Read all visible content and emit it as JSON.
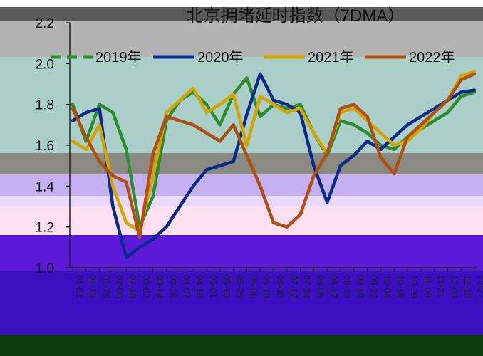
{
  "chart_data": {
    "type": "line",
    "title": "北京拥堵延时指数（7DMA）",
    "xlabel": "",
    "ylabel": "",
    "ylim": [
      1.0,
      2.2
    ],
    "yticks": [
      "1.0",
      "1.2",
      "1.4",
      "1.6",
      "1.8",
      "2.0",
      "2.2"
    ],
    "legend_position": "top",
    "grid": false,
    "x": [
      "01-01",
      "01-13",
      "01-25",
      "02-06",
      "02-18",
      "03-02",
      "03-14",
      "03-26",
      "04-07",
      "04-19",
      "05-01",
      "05-13",
      "05-25",
      "06-06",
      "06-18",
      "06-30",
      "07-12",
      "07-24",
      "08-05",
      "08-17",
      "08-29",
      "09-10",
      "09-22",
      "10-04",
      "10-16",
      "10-28",
      "11-09",
      "11-21",
      "12-03",
      "12-15",
      "12-27"
    ],
    "xtick_labels": [
      "01-01",
      "01-13",
      "01-25",
      "02-06",
      "02-18",
      "03-02",
      "03-14",
      "03-26",
      "04-07",
      "04-19",
      "05-01",
      "05-13",
      "05-25",
      "06-06",
      "06-18",
      "06-30",
      "07-12",
      "07-24",
      "08-05",
      "08-17",
      "08-29",
      "09-10",
      "09-22",
      "10-04",
      "10-16",
      "10-28",
      "11-09",
      "11-21",
      "12-03",
      "12-15",
      "12-27"
    ],
    "series": [
      {
        "name": "2019年",
        "color": "#2e8b2e",
        "dash": "dashed-in-legend",
        "values": [
          1.8,
          1.62,
          1.8,
          1.76,
          1.58,
          1.2,
          1.35,
          1.72,
          1.82,
          1.86,
          1.8,
          1.7,
          1.85,
          1.93,
          1.74,
          1.8,
          1.78,
          1.8,
          1.66,
          1.55,
          1.72,
          1.7,
          1.66,
          1.6,
          1.58,
          1.64,
          1.68,
          1.72,
          1.76,
          1.84,
          1.86
        ]
      },
      {
        "name": "2020年",
        "color": "#0a2a8c",
        "values": [
          1.72,
          1.76,
          1.78,
          1.3,
          1.05,
          1.1,
          1.14,
          1.2,
          1.3,
          1.4,
          1.48,
          1.5,
          1.52,
          1.75,
          1.95,
          1.82,
          1.8,
          1.76,
          1.5,
          1.32,
          1.5,
          1.55,
          1.62,
          1.58,
          1.64,
          1.7,
          1.74,
          1.78,
          1.82,
          1.86,
          1.87
        ]
      },
      {
        "name": "2021年",
        "color": "#d4a500",
        "values": [
          1.62,
          1.58,
          1.7,
          1.4,
          1.22,
          1.18,
          1.45,
          1.76,
          1.82,
          1.88,
          1.76,
          1.8,
          1.85,
          1.6,
          1.84,
          1.8,
          1.76,
          1.78,
          1.66,
          1.56,
          1.76,
          1.78,
          1.72,
          1.66,
          1.6,
          1.62,
          1.68,
          1.76,
          1.82,
          1.94,
          1.96
        ]
      },
      {
        "name": "2022年",
        "color": "#b05010",
        "values": [
          1.78,
          1.64,
          1.52,
          1.45,
          1.42,
          1.15,
          1.56,
          1.74,
          1.72,
          1.7,
          1.66,
          1.62,
          1.7,
          1.55,
          1.4,
          1.22,
          1.2,
          1.26,
          1.45,
          1.56,
          1.78,
          1.8,
          1.74,
          1.54,
          1.46,
          1.64,
          1.7,
          1.76,
          1.82,
          1.92,
          1.95
        ]
      }
    ]
  }
}
